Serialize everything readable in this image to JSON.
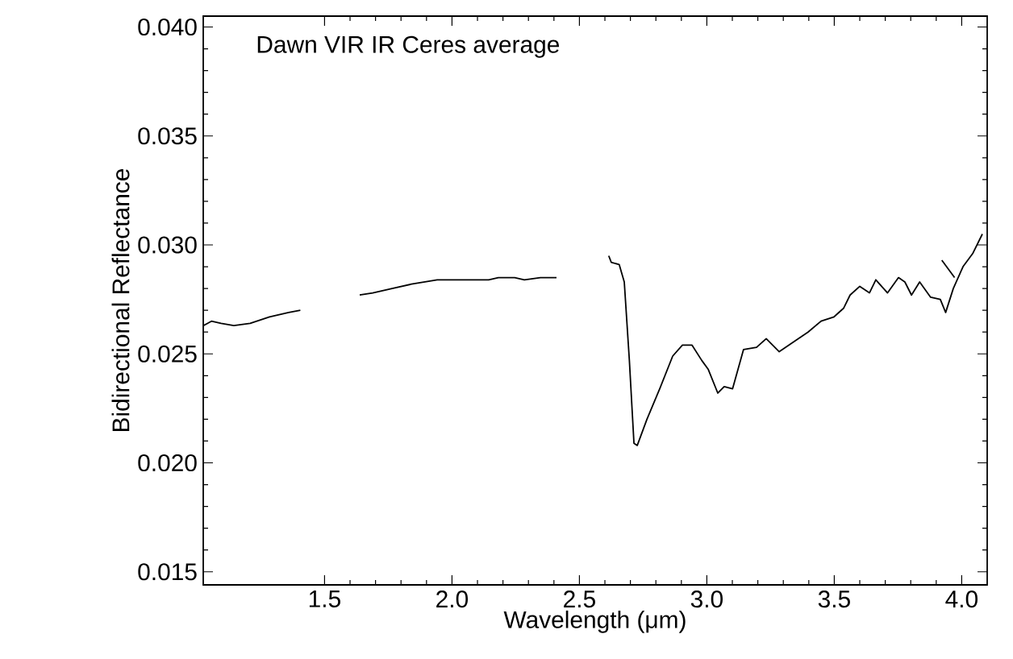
{
  "chart_data": {
    "type": "line",
    "title": "Dawn VIR IR Ceres average",
    "xlabel": "Wavelength (μm)",
    "ylabel": "Bidirectional  Reflectance",
    "xlim": [
      1.024,
      4.1
    ],
    "ylim": [
      0.0144,
      0.0405
    ],
    "xticks": [
      {
        "value": 1.5,
        "label": "1.5"
      },
      {
        "value": 2.0,
        "label": "2.0"
      },
      {
        "value": 2.5,
        "label": "2.5"
      },
      {
        "value": 3.0,
        "label": "3.0"
      },
      {
        "value": 3.5,
        "label": "3.5"
      },
      {
        "value": 4.0,
        "label": "4.0"
      }
    ],
    "yticks": [
      {
        "value": 0.015,
        "label": "0.015"
      },
      {
        "value": 0.02,
        "label": "0.020"
      },
      {
        "value": 0.025,
        "label": "0.025"
      },
      {
        "value": 0.03,
        "label": "0.030"
      },
      {
        "value": 0.035,
        "label": "0.035"
      },
      {
        "value": 0.04,
        "label": "0.040"
      }
    ],
    "series": [
      {
        "color": "#000000",
        "x": [
          1.025,
          1.056,
          1.094,
          1.144,
          1.208,
          1.284,
          1.359,
          1.405
        ],
        "values": [
          0.0263,
          0.0265,
          0.0264,
          0.0263,
          0.0264,
          0.0267,
          0.0269,
          0.027
        ]
      },
      {
        "color": "#000000",
        "x": [
          1.638,
          1.689,
          1.765,
          1.841,
          1.942,
          2.043,
          2.144,
          2.182,
          2.246,
          2.284,
          2.347,
          2.41
        ],
        "values": [
          0.0277,
          0.0278,
          0.028,
          0.0282,
          0.0284,
          0.0284,
          0.0284,
          0.0285,
          0.0285,
          0.0284,
          0.0285,
          0.0285
        ]
      },
      {
        "color": "#000000",
        "x": [
          2.615,
          2.625,
          2.656,
          2.676,
          2.696,
          2.714,
          2.727,
          2.765,
          2.815,
          2.866,
          2.904,
          2.942,
          2.98,
          3.005,
          3.043,
          3.068,
          3.101,
          3.144,
          3.195,
          3.233,
          3.284,
          3.334,
          3.397,
          3.448,
          3.499,
          3.537,
          3.562,
          3.6,
          3.638,
          3.663,
          3.709,
          3.752,
          3.777,
          3.803,
          3.835,
          3.878,
          3.916,
          3.937,
          3.967,
          4.005,
          4.043,
          4.081
        ],
        "values": [
          0.0295,
          0.0292,
          0.0291,
          0.0283,
          0.0247,
          0.0209,
          0.0208,
          0.022,
          0.0234,
          0.0249,
          0.0254,
          0.0254,
          0.0247,
          0.0243,
          0.0232,
          0.0235,
          0.0234,
          0.0252,
          0.0253,
          0.0257,
          0.0251,
          0.0255,
          0.026,
          0.0265,
          0.0267,
          0.0271,
          0.0277,
          0.0281,
          0.0278,
          0.0284,
          0.0278,
          0.0285,
          0.0283,
          0.0277,
          0.0283,
          0.0276,
          0.0275,
          0.0269,
          0.028,
          0.029,
          0.0296,
          0.0305
        ]
      },
      {
        "color": "#000000",
        "x": [
          3.922,
          3.972
        ],
        "values": [
          0.0293,
          0.0285
        ]
      }
    ]
  }
}
